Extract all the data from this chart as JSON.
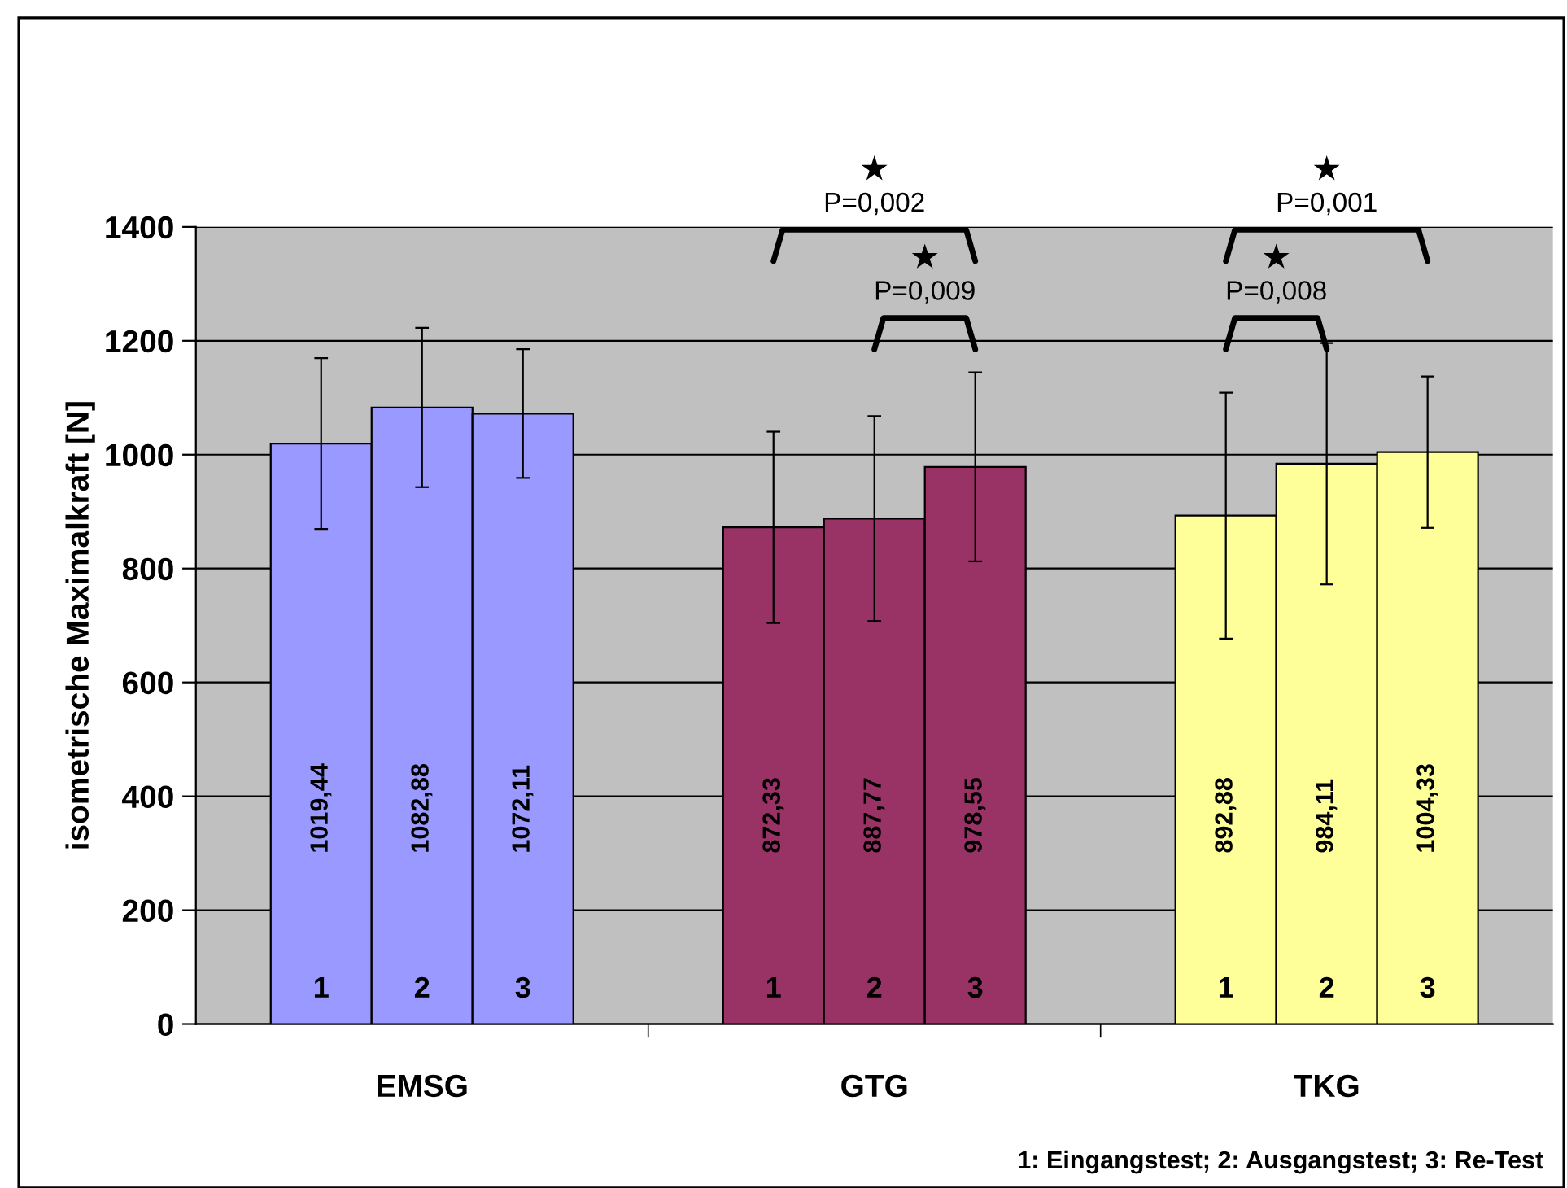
{
  "chart_data": {
    "type": "bar",
    "ylabel": "isometrische Maximalkraft [N]",
    "categories": [
      "EMSG",
      "GTG",
      "TKG"
    ],
    "series": [
      {
        "name": "1",
        "colors": [
          "#9999ff",
          "#993366",
          "#ffff99"
        ],
        "values": [
          1019.44,
          872.33,
          892.88
        ],
        "value_labels": [
          "1019,44",
          "872,33",
          "892,88"
        ],
        "errors": [
          150,
          168,
          216
        ]
      },
      {
        "name": "2",
        "colors": [
          "#9999ff",
          "#993366",
          "#ffff99"
        ],
        "values": [
          1082.88,
          887.77,
          984.11
        ],
        "value_labels": [
          "1082,88",
          "887,77",
          "984,11"
        ],
        "errors": [
          140,
          180,
          212
        ]
      },
      {
        "name": "3",
        "colors": [
          "#9999ff",
          "#993366",
          "#ffff99"
        ],
        "values": [
          1072.11,
          978.55,
          1004.33
        ],
        "value_labels": [
          "1072,11",
          "978,55",
          "1004,33"
        ],
        "errors": [
          113,
          166,
          133
        ]
      }
    ],
    "ylim": [
      0,
      1400
    ],
    "yticks": [
      0,
      200,
      400,
      600,
      800,
      1000,
      1200,
      1400
    ],
    "grid": "y",
    "legend": false,
    "annotations": [
      "★",
      "P=0,002",
      "★",
      "P=0,009",
      "★",
      "P=0,001",
      "★",
      "P=0,008",
      "1: Eingangstest; 2: Ausgangstest; 3: Re-Test"
    ]
  }
}
